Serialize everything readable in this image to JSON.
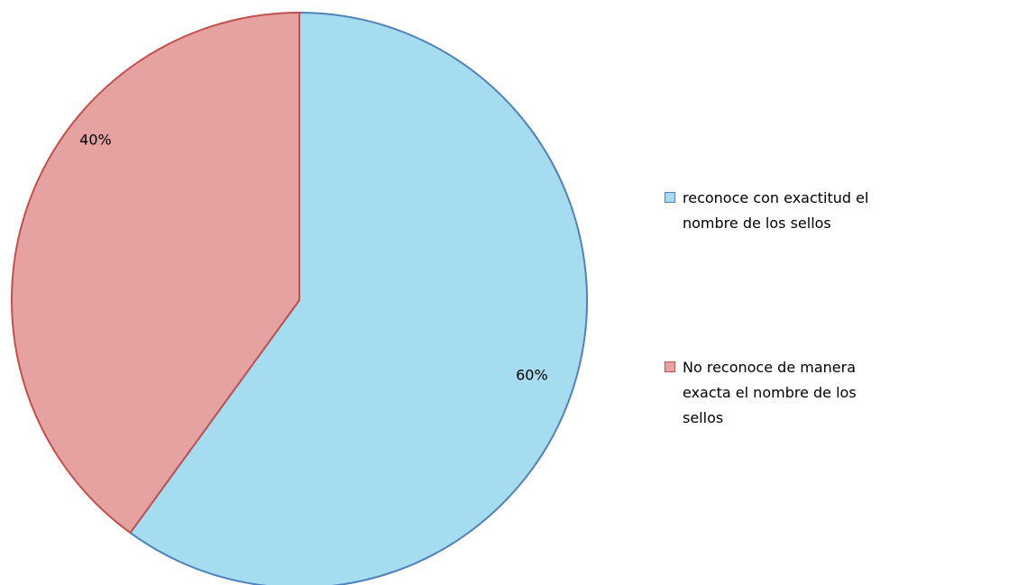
{
  "chart_data": {
    "type": "pie",
    "categories": [
      "reconoce con exactitud el nombre de los sellos",
      "No reconoce de manera exacta el nombre de los sellos"
    ],
    "values": [
      60,
      40
    ],
    "value_labels": [
      "60%",
      "40%"
    ],
    "colors": [
      "#a5dcef",
      "#e6a2a1"
    ],
    "edge_colors": [
      "#4f81bd",
      "#c0504d"
    ],
    "legend": "right"
  }
}
